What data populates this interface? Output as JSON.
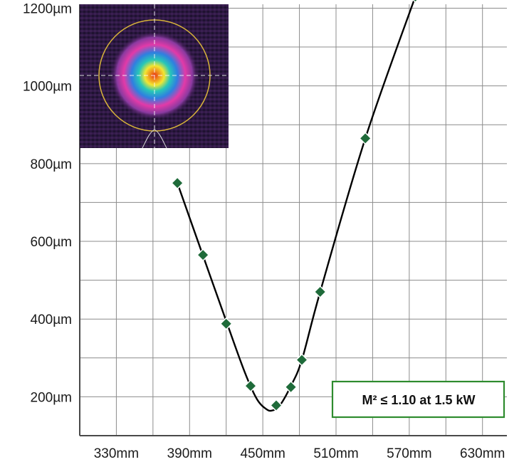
{
  "chart_data": {
    "type": "scatter",
    "title": "",
    "xlabel": "",
    "ylabel": "",
    "x_ticks": [
      "330mm",
      "390mm",
      "450mm",
      "510mm",
      "570mm",
      "630mm"
    ],
    "y_ticks": [
      "200µm",
      "400µm",
      "600µm",
      "800µm",
      "1000µm",
      "1200µm"
    ],
    "xlim": [
      300,
      650
    ],
    "ylim": [
      100,
      1210
    ],
    "grid": true,
    "series": [
      {
        "marker": "diamond",
        "color": "#1f6b3a",
        "points": [
          {
            "x": 380,
            "y": 750
          },
          {
            "x": 401,
            "y": 565
          },
          {
            "x": 420,
            "y": 388
          },
          {
            "x": 440,
            "y": 228
          },
          {
            "x": 461,
            "y": 178
          },
          {
            "x": 473,
            "y": 225
          },
          {
            "x": 482,
            "y": 295
          },
          {
            "x": 497,
            "y": 470
          },
          {
            "x": 534,
            "y": 865
          },
          {
            "x": 575,
            "y": 1230
          }
        ]
      }
    ],
    "fit_curve": {
      "color": "#000000",
      "points": [
        {
          "x": 380,
          "y": 750
        },
        {
          "x": 400,
          "y": 572
        },
        {
          "x": 420,
          "y": 395
        },
        {
          "x": 435,
          "y": 265
        },
        {
          "x": 445,
          "y": 195
        },
        {
          "x": 453,
          "y": 168
        },
        {
          "x": 458,
          "y": 165
        },
        {
          "x": 464,
          "y": 178
        },
        {
          "x": 473,
          "y": 228
        },
        {
          "x": 482,
          "y": 295
        },
        {
          "x": 497,
          "y": 470
        },
        {
          "x": 534,
          "y": 865
        },
        {
          "x": 575,
          "y": 1230
        }
      ]
    },
    "annotation": "M² ≤ 1.10 at 1.5 kW",
    "annotation_border_color": "#2e8b2e",
    "inset": {
      "description_colors": [
        "#1e1030",
        "#5b2a7a",
        "#e23aa8",
        "#2f7fe0",
        "#27c7b8",
        "#f2e632",
        "#f08a1c",
        "#e53218"
      ],
      "ring_color": "#d8b43a"
    }
  }
}
